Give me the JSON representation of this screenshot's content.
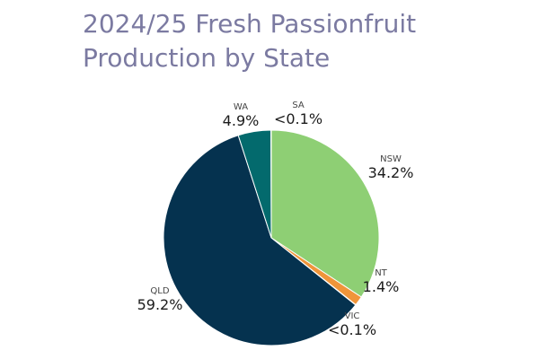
{
  "chart_data": {
    "type": "pie",
    "title_lines": [
      "2024/25 Fresh Passionfruit",
      "Production by State"
    ],
    "slices": [
      {
        "name": "NSW",
        "value": 34.2,
        "label": "34.2%",
        "color": "#8ecf74"
      },
      {
        "name": "NT",
        "value": 1.4,
        "label": "1.4%",
        "color": "#f0953a"
      },
      {
        "name": "VIC",
        "value": 0.05,
        "label": "<0.1%",
        "color": "#6a9ec9"
      },
      {
        "name": "QLD",
        "value": 59.2,
        "label": "59.2%",
        "color": "#05324f"
      },
      {
        "name": "WA",
        "value": 4.9,
        "label": "4.9%",
        "color": "#036a6d"
      },
      {
        "name": "SA",
        "value": 0.05,
        "label": "<0.1%",
        "color": "#a3a3a3"
      }
    ]
  }
}
